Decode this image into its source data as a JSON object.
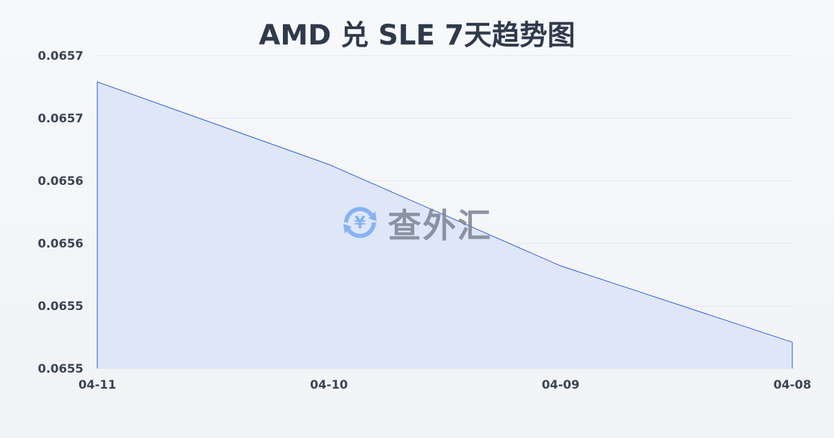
{
  "chart_data": {
    "type": "area",
    "title": "AMD 兑 SLE 7天趋势图",
    "categories": [
      "04-11",
      "04-10",
      "04-09",
      "04-08"
    ],
    "series": [
      {
        "values": [
          0.065729,
          0.065663,
          0.065582,
          0.065521
        ]
      }
    ],
    "ylim": [
      0.0655,
      0.06575
    ],
    "yticks": [
      0.0655,
      0.06555,
      0.0656,
      0.06565,
      0.0657,
      0.06575
    ],
    "ytick_labels": [
      "0.0655",
      "0.0655",
      "0.0656",
      "0.0656",
      "0.0657",
      "0.0657"
    ],
    "grid": true,
    "xlabel": "",
    "ylabel": "",
    "colors": {
      "line": "#2a5bd0",
      "fill": "#dbe4f7"
    }
  },
  "watermark": {
    "text": "查外汇",
    "icon": "yen-exchange-icon"
  }
}
